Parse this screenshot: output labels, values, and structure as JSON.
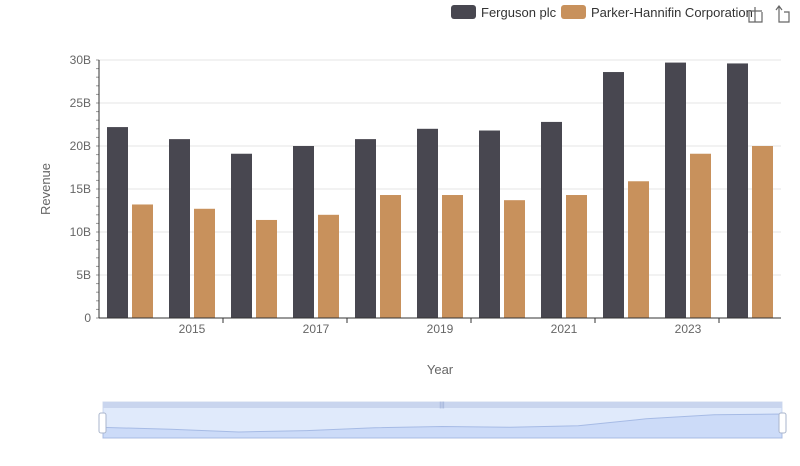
{
  "chart_data": {
    "type": "bar",
    "x": [
      2014,
      2015,
      2016,
      2017,
      2018,
      2019,
      2020,
      2021,
      2022,
      2023,
      2024
    ],
    "x_tick_labels": [
      "2015",
      "2017",
      "2019",
      "2021",
      "2023"
    ],
    "y_tick_labels": [
      "0",
      "5B",
      "10B",
      "15B",
      "20B",
      "25B",
      "30B"
    ],
    "ylim": [
      0,
      30
    ],
    "y_unit": "B",
    "xlabel": "Year",
    "ylabel": "Revenue",
    "grid": true,
    "legend_position": "top-right",
    "series": [
      {
        "name": "Ferguson plc",
        "color": "#484750",
        "values": [
          22.2,
          20.8,
          19.1,
          20.0,
          20.8,
          22.0,
          21.8,
          22.8,
          28.6,
          29.7,
          29.6
        ]
      },
      {
        "name": "Parker-Hannifin Corporation",
        "color": "#c8915c",
        "values": [
          13.2,
          12.7,
          11.4,
          12.0,
          14.3,
          14.3,
          13.7,
          14.3,
          15.9,
          19.1,
          20.0
        ]
      }
    ]
  },
  "toolbar": {
    "icons": [
      "zoom-select-icon",
      "zoom-reset-icon"
    ]
  },
  "datazoom": {
    "start_percent": 0,
    "end_percent": 100,
    "handle_color": "#c9d5ee"
  }
}
